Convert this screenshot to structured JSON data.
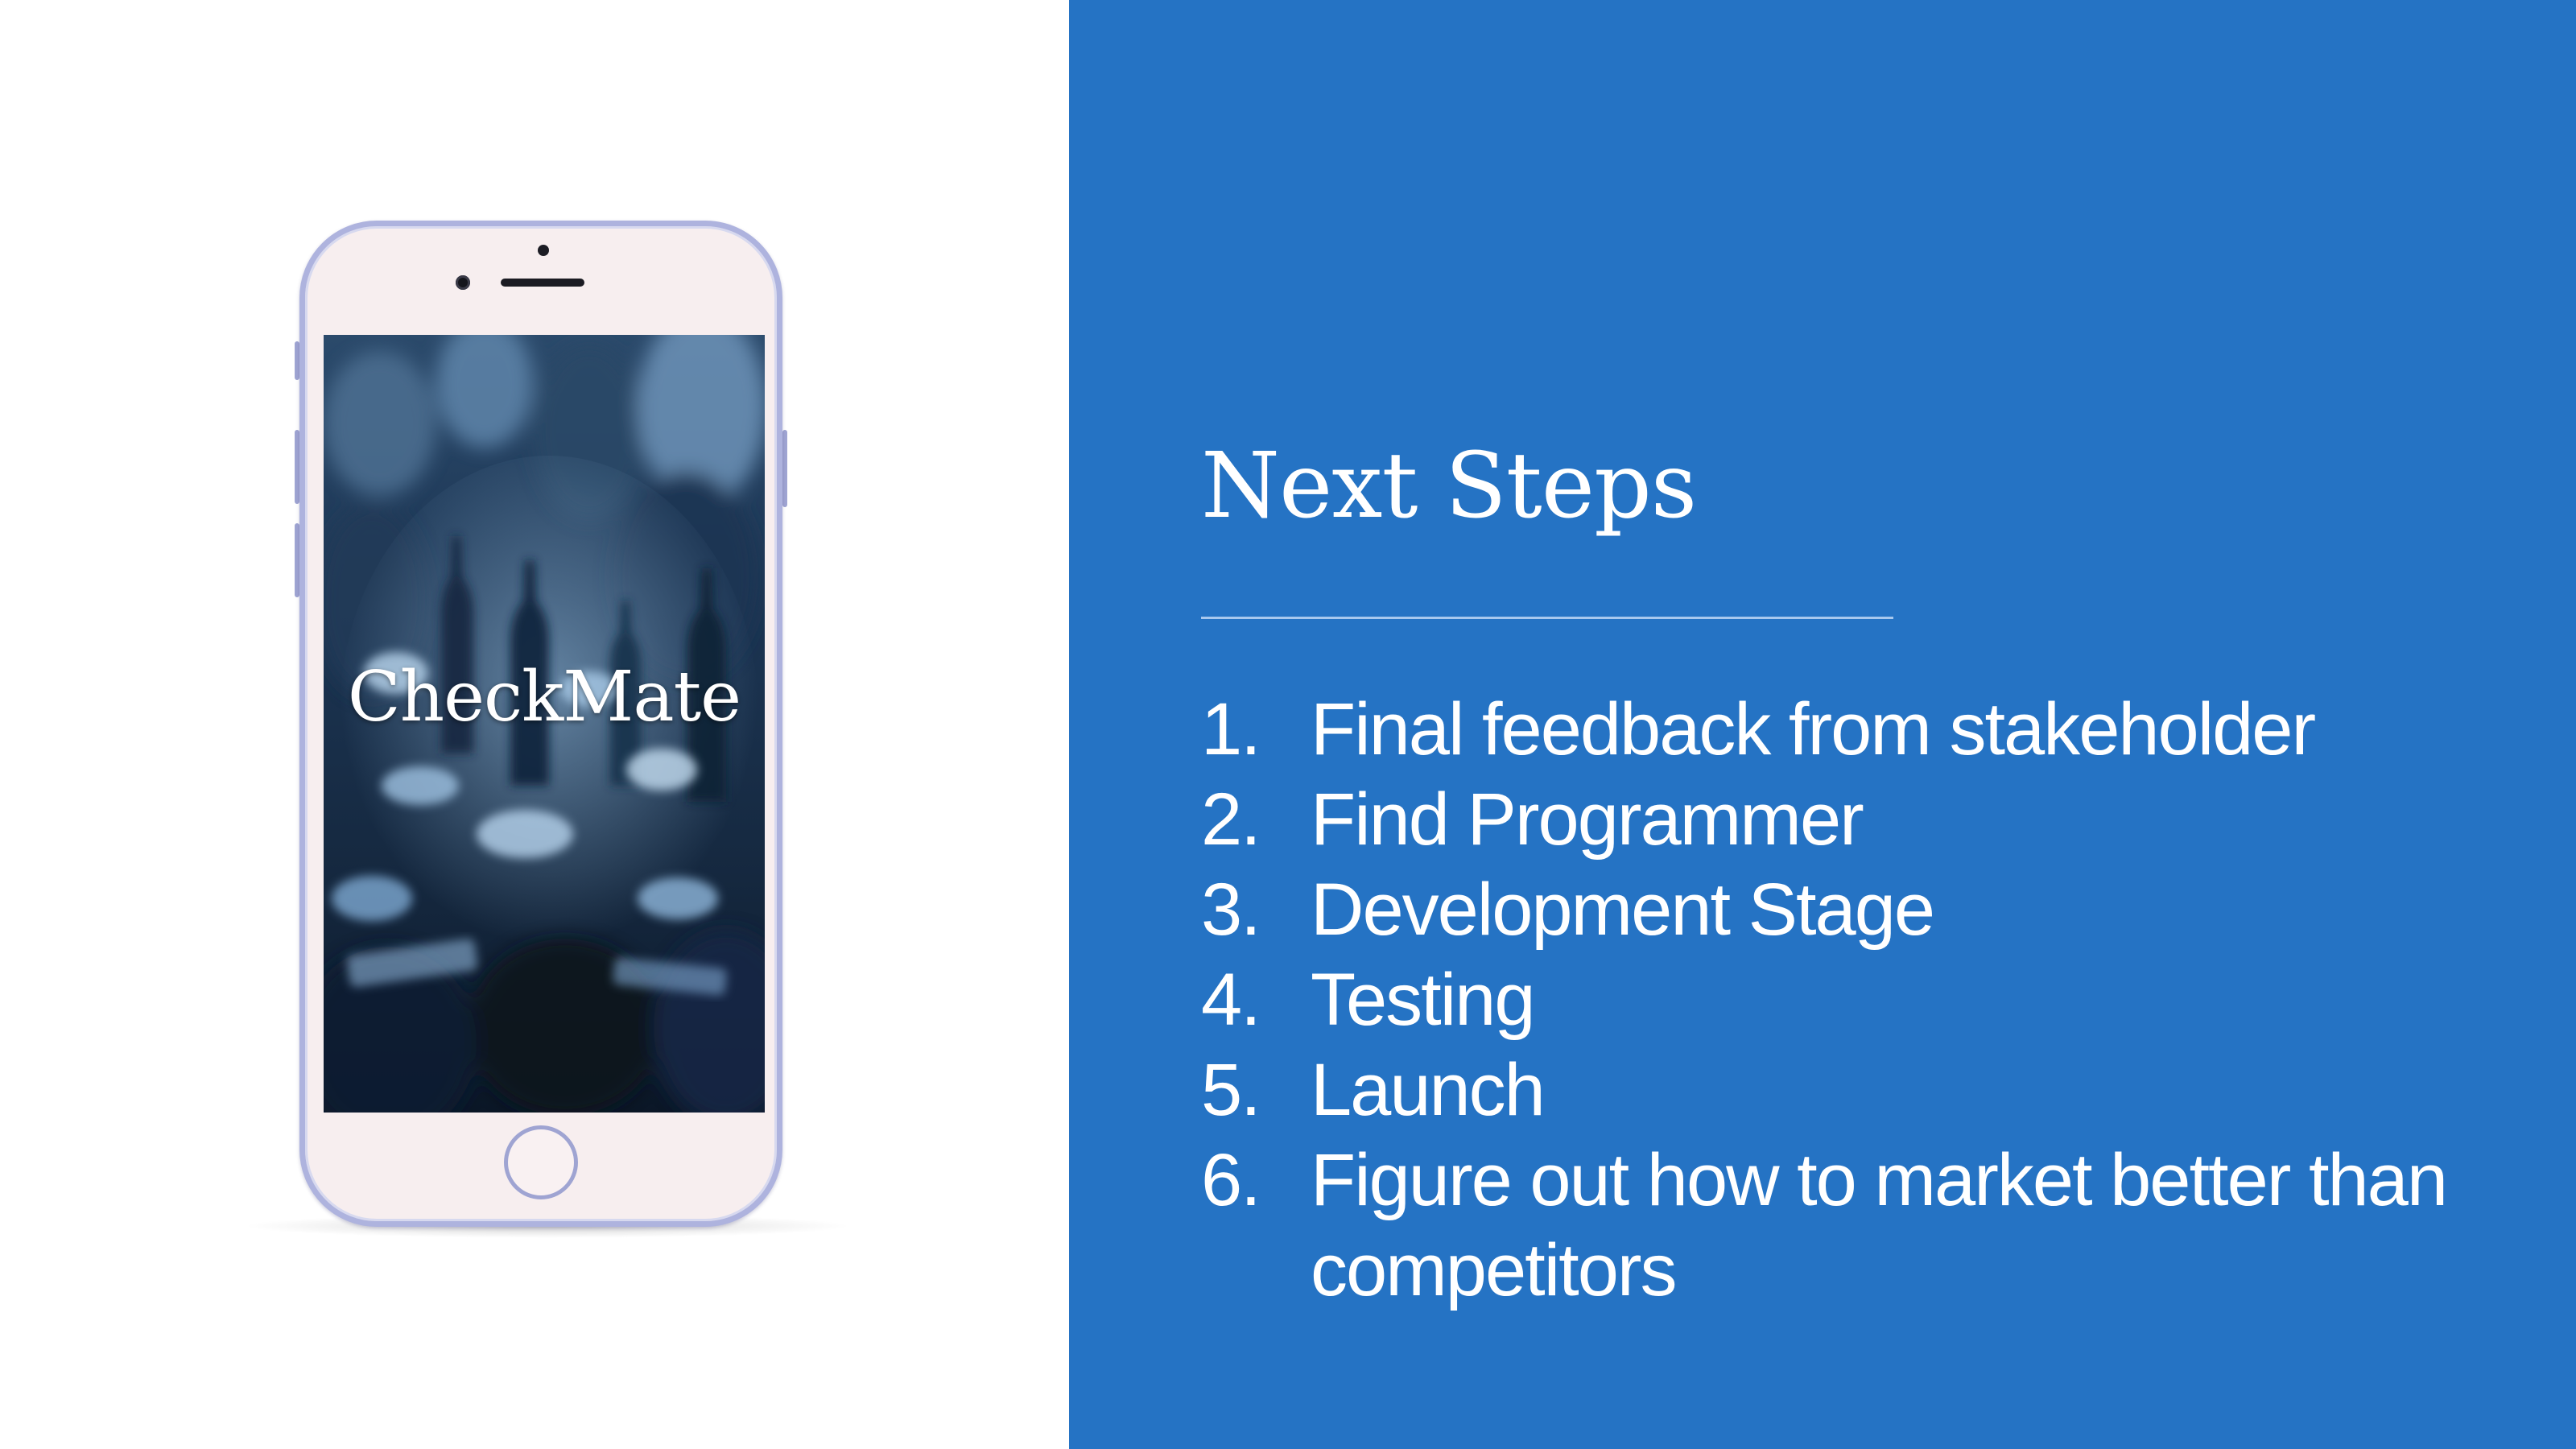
{
  "phone": {
    "app_name": "CheckMate"
  },
  "panel": {
    "title": "Next Steps",
    "steps": [
      {
        "number": "1.",
        "text": "Final feedback from stakeholder"
      },
      {
        "number": "2.",
        "text": "Find Programmer"
      },
      {
        "number": "3.",
        "text": "Development Stage"
      },
      {
        "number": "4.",
        "text": "Testing"
      },
      {
        "number": "5.",
        "text": "Launch"
      },
      {
        "number": "6.",
        "text": "Figure out how to market better than competitors"
      }
    ]
  },
  "colors": {
    "panel_background": "#2573c4",
    "text": "#ffffff",
    "divider": "#a8c8ee",
    "phone_body": "#f7eeef",
    "phone_frame": "#aeb3de"
  }
}
